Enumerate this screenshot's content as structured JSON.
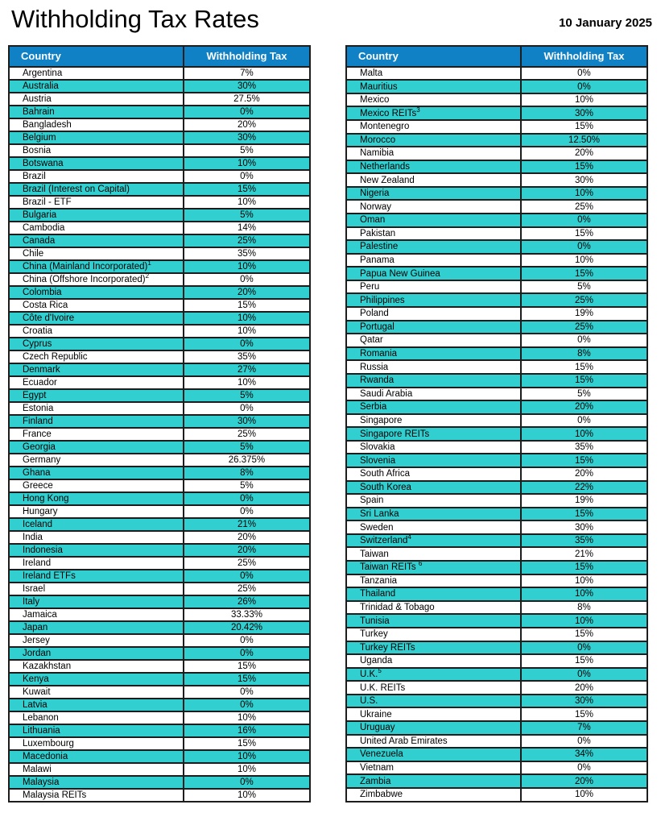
{
  "header": {
    "title": "Withholding Tax Rates",
    "date": "10 January 2025"
  },
  "columns": [
    "Country",
    "Withholding Tax"
  ],
  "colors": {
    "header_bg": "#1181c5",
    "alt_row_bg": "#32cfd0",
    "border": "#1d1d1d"
  },
  "tables": {
    "left": {
      "rows": [
        [
          "Argentina",
          "7%"
        ],
        [
          "Australia",
          "30%"
        ],
        [
          "Austria",
          "27.5%"
        ],
        [
          "Bahrain",
          "0%"
        ],
        [
          "Bangladesh",
          "20%"
        ],
        [
          "Belgium",
          "30%"
        ],
        [
          "Bosnia",
          "5%"
        ],
        [
          "Botswana",
          "10%"
        ],
        [
          "Brazil",
          "0%"
        ],
        [
          "Brazil (Interest on Capital)",
          "15%"
        ],
        [
          "Brazil - ETF",
          "10%"
        ],
        [
          "Bulgaria",
          "5%"
        ],
        [
          "Cambodia",
          "14%"
        ],
        [
          "Canada",
          "25%"
        ],
        [
          "Chile",
          "35%"
        ],
        [
          "China (Mainland Incorporated)",
          "10%",
          "1"
        ],
        [
          "China (Offshore Incorporated)",
          "0%",
          "2"
        ],
        [
          "Colombia",
          "20%"
        ],
        [
          "Costa Rica",
          "15%"
        ],
        [
          "Côte d'Ivoire",
          "10%"
        ],
        [
          "Croatia",
          "10%"
        ],
        [
          "Cyprus",
          "0%"
        ],
        [
          "Czech Republic",
          "35%"
        ],
        [
          "Denmark",
          "27%"
        ],
        [
          "Ecuador",
          "10%"
        ],
        [
          "Egypt",
          "5%"
        ],
        [
          "Estonia",
          "0%"
        ],
        [
          "Finland",
          "30%"
        ],
        [
          "France",
          "25%"
        ],
        [
          "Georgia",
          "5%"
        ],
        [
          "Germany",
          "26.375%"
        ],
        [
          "Ghana",
          "8%"
        ],
        [
          "Greece",
          "5%"
        ],
        [
          "Hong Kong",
          "0%"
        ],
        [
          "Hungary",
          "0%"
        ],
        [
          "Iceland",
          "21%"
        ],
        [
          "India",
          "20%"
        ],
        [
          "Indonesia",
          "20%"
        ],
        [
          "Ireland",
          "25%"
        ],
        [
          "Ireland ETFs",
          "0%"
        ],
        [
          "Israel",
          "25%"
        ],
        [
          "Italy",
          "26%"
        ],
        [
          "Jamaica",
          "33.33%"
        ],
        [
          "Japan",
          "20.42%"
        ],
        [
          "Jersey",
          "0%"
        ],
        [
          "Jordan",
          "0%"
        ],
        [
          "Kazakhstan",
          "15%"
        ],
        [
          "Kenya",
          "15%"
        ],
        [
          "Kuwait",
          "0%"
        ],
        [
          "Latvia",
          "0%"
        ],
        [
          "Lebanon",
          "10%"
        ],
        [
          "Lithuania",
          "16%"
        ],
        [
          "Luxembourg",
          "15%"
        ],
        [
          "Macedonia",
          "10%"
        ],
        [
          "Malawi",
          "10%"
        ],
        [
          "Malaysia",
          "0%"
        ],
        [
          "Malaysia REITs",
          "10%"
        ]
      ]
    },
    "right": {
      "rows": [
        [
          "Malta",
          "0%"
        ],
        [
          "Mauritius",
          "0%"
        ],
        [
          "Mexico",
          "10%"
        ],
        [
          "Mexico REITs",
          "30%",
          "3"
        ],
        [
          "Montenegro",
          "15%"
        ],
        [
          "Morocco",
          "12.50%"
        ],
        [
          "Namibia",
          "20%"
        ],
        [
          "Netherlands",
          "15%"
        ],
        [
          "New Zealand",
          "30%"
        ],
        [
          "Nigeria",
          "10%"
        ],
        [
          "Norway",
          "25%"
        ],
        [
          "Oman",
          "0%"
        ],
        [
          "Pakistan",
          "15%"
        ],
        [
          "Palestine",
          "0%"
        ],
        [
          "Panama",
          "10%"
        ],
        [
          "Papua New Guinea",
          "15%"
        ],
        [
          "Peru",
          "5%"
        ],
        [
          "Philippines",
          "25%"
        ],
        [
          "Poland",
          "19%"
        ],
        [
          "Portugal",
          "25%"
        ],
        [
          "Qatar",
          "0%"
        ],
        [
          "Romania",
          "8%"
        ],
        [
          "Russia",
          "15%"
        ],
        [
          "Rwanda",
          "15%"
        ],
        [
          "Saudi Arabia",
          "5%"
        ],
        [
          "Serbia",
          "20%"
        ],
        [
          "Singapore",
          "0%"
        ],
        [
          "Singapore REITs",
          "10%"
        ],
        [
          "Slovakia",
          "35%"
        ],
        [
          "Slovenia",
          "15%"
        ],
        [
          "South Africa",
          "20%"
        ],
        [
          "South Korea",
          "22%"
        ],
        [
          "Spain",
          "19%"
        ],
        [
          "Sri Lanka",
          "15%"
        ],
        [
          "Sweden",
          "30%"
        ],
        [
          "Switzerland",
          "35%",
          "4"
        ],
        [
          "Taiwan",
          "21%"
        ],
        [
          "Taiwan REITs ",
          "15%",
          "6"
        ],
        [
          "Tanzania",
          "10%"
        ],
        [
          "Thailand",
          "10%"
        ],
        [
          "Trinidad & Tobago",
          "8%"
        ],
        [
          "Tunisia",
          "10%"
        ],
        [
          "Turkey",
          "15%"
        ],
        [
          "Turkey REITs",
          "0%"
        ],
        [
          "Uganda",
          "15%"
        ],
        [
          "U.K.",
          "0%",
          "5"
        ],
        [
          "U.K. REITs",
          "20%"
        ],
        [
          "U.S.",
          "30%"
        ],
        [
          "Ukraine",
          "15%"
        ],
        [
          "Uruguay",
          "7%"
        ],
        [
          "United Arab Emirates",
          "0%"
        ],
        [
          "Venezuela",
          "34%"
        ],
        [
          "Vietnam",
          "0%"
        ],
        [
          "Zambia",
          "20%"
        ],
        [
          "Zimbabwe",
          "10%"
        ]
      ]
    }
  }
}
